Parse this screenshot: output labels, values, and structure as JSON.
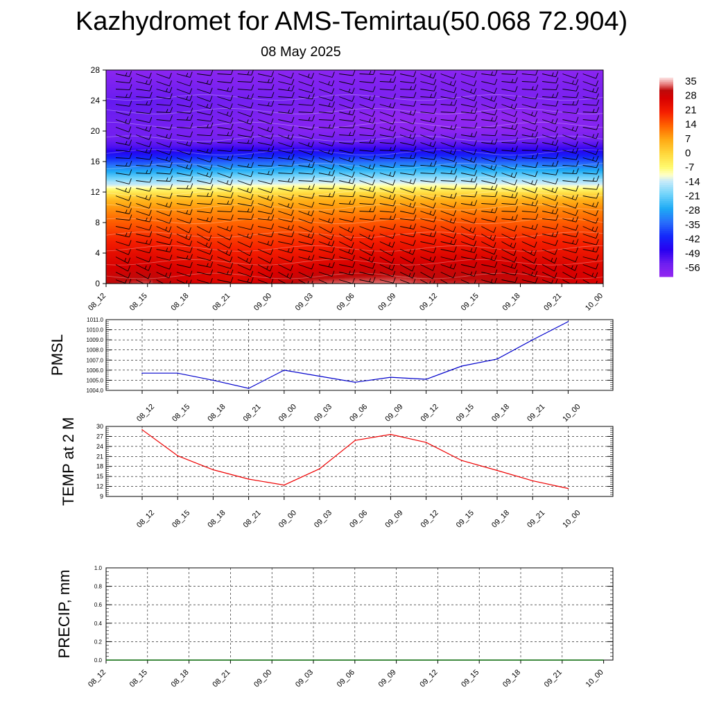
{
  "header": {
    "title": "Kazhydromet for AMS-Temirtau(50.068 72.904)",
    "date": "08 May 2025"
  },
  "time_labels": [
    "08_12",
    "08_15",
    "08_18",
    "08_21",
    "09_00",
    "09_03",
    "09_06",
    "09_09",
    "09_12",
    "09_15",
    "09_18",
    "09_21",
    "10_00"
  ],
  "chart_data": [
    {
      "type": "heatmap",
      "title": "",
      "x_ticks": [
        "08_12",
        "08_15",
        "08_18",
        "08_21",
        "09_00",
        "09_03",
        "09_06",
        "09_09",
        "09_12",
        "09_15",
        "09_18",
        "09_21",
        "10_00"
      ],
      "y_ticks": [
        0,
        4,
        8,
        12,
        16,
        20,
        24,
        28
      ],
      "ylim": [
        0,
        28
      ],
      "colorbar": {
        "labels": [
          "35",
          "28",
          "21",
          "14",
          "7",
          "0",
          "-7",
          "-14",
          "-21",
          "-28",
          "-35",
          "-42",
          "-49",
          "-56"
        ],
        "range": [
          -63,
          38
        ]
      },
      "temperature_profile": {
        "levels": [
          0,
          2,
          4,
          6,
          8,
          10,
          11,
          12,
          13,
          14,
          15,
          16,
          17,
          18,
          19,
          20,
          22,
          24,
          26,
          28
        ],
        "values": [
          [
            32,
            34,
            28,
            26,
            30,
            34,
            35,
            35,
            33,
            33,
            31,
            29,
            27
          ],
          [
            28,
            29,
            27,
            25,
            27,
            28,
            29,
            30,
            30,
            30,
            29,
            28,
            27
          ],
          [
            25,
            25,
            23,
            22,
            22,
            23,
            25,
            26,
            26,
            26,
            25,
            24,
            23
          ],
          [
            20,
            20,
            19,
            18,
            18,
            19,
            20,
            21,
            21,
            21,
            20,
            20,
            19
          ],
          [
            15,
            15,
            14,
            14,
            14,
            14,
            15,
            16,
            16,
            16,
            15,
            15,
            15
          ],
          [
            9,
            9,
            9,
            9,
            9,
            9,
            9,
            10,
            10,
            10,
            10,
            10,
            10
          ],
          [
            5,
            5,
            5,
            5,
            5,
            6,
            6,
            6,
            6,
            6,
            6,
            6,
            6
          ],
          [
            -3,
            -3,
            -3,
            -2,
            -2,
            -1,
            -1,
            -1,
            -1,
            -1,
            -2,
            -2,
            -2
          ],
          [
            -14,
            -14,
            -13,
            -12,
            -12,
            -11,
            -11,
            -11,
            -11,
            -12,
            -12,
            -13,
            -13
          ],
          [
            -22,
            -22,
            -21,
            -20,
            -20,
            -19,
            -19,
            -19,
            -19,
            -20,
            -20,
            -21,
            -21
          ],
          [
            -30,
            -30,
            -29,
            -28,
            -28,
            -27,
            -27,
            -27,
            -27,
            -28,
            -28,
            -29,
            -29
          ],
          [
            -38,
            -38,
            -37,
            -36,
            -36,
            -35,
            -35,
            -35,
            -35,
            -36,
            -36,
            -37,
            -37
          ],
          [
            -46,
            -46,
            -45,
            -44,
            -44,
            -44,
            -44,
            -44,
            -44,
            -44,
            -45,
            -45,
            -45
          ],
          [
            -53,
            -53,
            -53,
            -52,
            -52,
            -52,
            -52,
            -52,
            -52,
            -52,
            -52,
            -52,
            -52
          ],
          [
            -56,
            -56,
            -57,
            -57,
            -57,
            -57,
            -57,
            -57,
            -57,
            -57,
            -57,
            -57,
            -57
          ],
          [
            -57,
            -57,
            -58,
            -59,
            -59,
            -60,
            -60,
            -61,
            -61,
            -61,
            -61,
            -60,
            -60
          ],
          [
            -56,
            -56,
            -57,
            -58,
            -59,
            -60,
            -61,
            -62,
            -62,
            -62,
            -62,
            -61,
            -60
          ],
          [
            -55,
            -55,
            -56,
            -57,
            -57,
            -58,
            -58,
            -59,
            -59,
            -59,
            -59,
            -58,
            -58
          ],
          [
            -58,
            -58,
            -58,
            -59,
            -59,
            -59,
            -59,
            -59,
            -59,
            -59,
            -59,
            -59,
            -59
          ],
          [
            -61,
            -61,
            -61,
            -61,
            -61,
            -61,
            -61,
            -61,
            -61,
            -61,
            -61,
            -61,
            -61
          ]
        ]
      },
      "wind_barbs": true
    },
    {
      "type": "line",
      "ylabel": "PMSL",
      "categories": [
        "08_12",
        "08_15",
        "08_18",
        "08_21",
        "09_00",
        "09_03",
        "09_06",
        "09_09",
        "09_12",
        "09_15",
        "09_18",
        "09_21",
        "10_00"
      ],
      "ylim": [
        1004.0,
        1011.0
      ],
      "y_ticks": [
        "1004.0",
        "1005.0",
        "1006.0",
        "1007.0",
        "1008.0",
        "1009.0",
        "1010.0",
        "1011.0"
      ],
      "values": [
        1005.7,
        1005.7,
        1005.0,
        1004.2,
        1006.0,
        1005.4,
        1004.8,
        1005.3,
        1005.1,
        1006.4,
        1007.1,
        1009.0,
        1010.8
      ],
      "color": "#0000cc"
    },
    {
      "type": "line",
      "ylabel": "TEMP at 2 M",
      "categories": [
        "08_12",
        "08_15",
        "08_18",
        "08_21",
        "09_00",
        "09_03",
        "09_06",
        "09_09",
        "09_12",
        "09_15",
        "09_18",
        "09_21",
        "10_00"
      ],
      "ylim": [
        9,
        30
      ],
      "y_ticks": [
        "9",
        "12",
        "15",
        "18",
        "21",
        "24",
        "27",
        "30"
      ],
      "values": [
        29.0,
        21.2,
        17.0,
        14.2,
        12.4,
        17.3,
        25.8,
        27.6,
        25.2,
        19.8,
        16.8,
        13.7,
        11.4
      ],
      "color": "#ee0000"
    },
    {
      "type": "line",
      "ylabel": "PRECIP, mm",
      "categories": [
        "08_12",
        "08_15",
        "08_18",
        "08_21",
        "09_00",
        "09_03",
        "09_06",
        "09_09",
        "09_12",
        "09_15",
        "09_18",
        "09_21",
        "10_00"
      ],
      "ylim": [
        0.0,
        1.0
      ],
      "y_ticks": [
        "0.0",
        "0.2",
        "0.4",
        "0.6",
        "0.8",
        "1.0"
      ],
      "values": [
        0,
        0,
        0,
        0,
        0,
        0,
        0,
        0,
        0,
        0,
        0,
        0,
        0
      ],
      "color": "#006400"
    }
  ]
}
